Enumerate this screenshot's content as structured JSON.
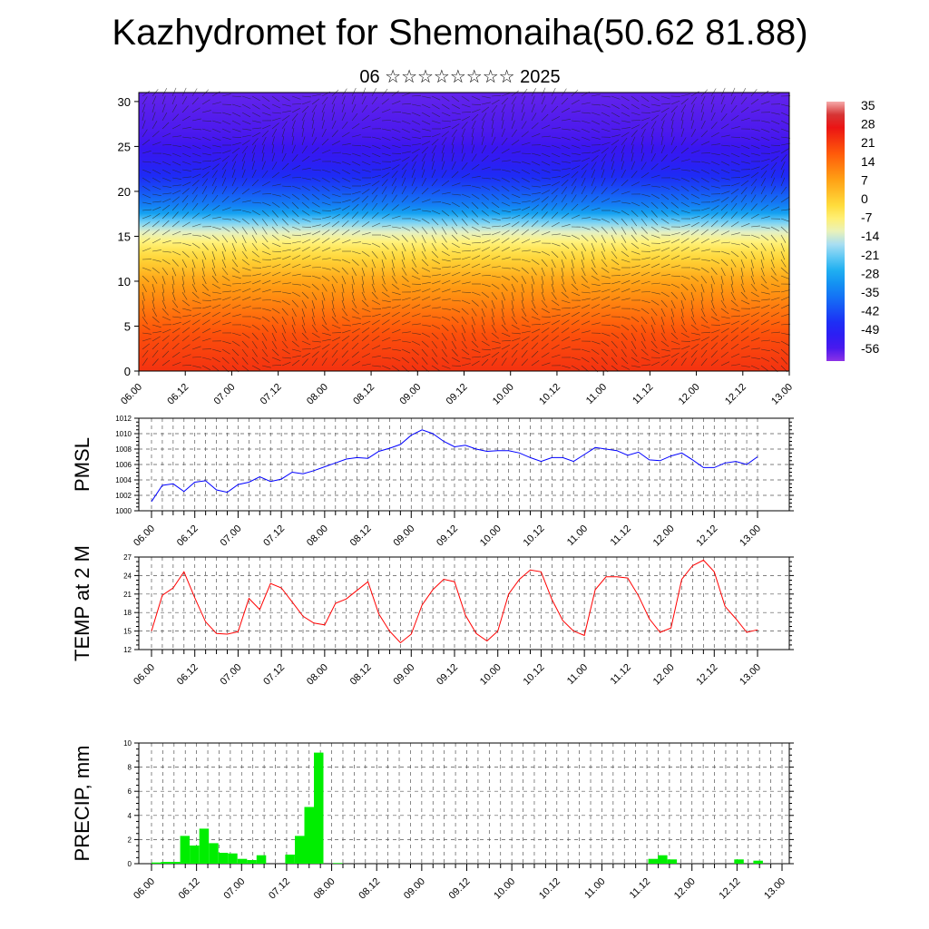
{
  "title": "Kazhydromet for Shemonaiha(50.62 81.88)",
  "subtitle": "06 ☆☆☆☆☆☆☆☆ 2025",
  "chart_data": [
    {
      "type": "heatmap",
      "name": "cross-section",
      "x_ticks": [
        "06.00",
        "06.12",
        "07.00",
        "07.12",
        "08.00",
        "08.12",
        "09.00",
        "09.12",
        "10.00",
        "10.12",
        "11.00",
        "11.12",
        "12.00",
        "12.12",
        "13.00"
      ],
      "y_ticks": [
        0,
        5,
        10,
        15,
        20,
        25,
        30
      ],
      "ylim": [
        0,
        31
      ],
      "colorbar_labels": [
        "35",
        "28",
        "21",
        "14",
        "7",
        "0",
        "-7",
        "-14",
        "-21",
        "-28",
        "-35",
        "-42",
        "-49",
        "-56"
      ],
      "colorbar_range": [
        -60,
        38
      ],
      "temp_profile": [
        [
          0,
          24
        ],
        [
          4,
          20
        ],
        [
          10,
          8
        ],
        [
          14,
          -5
        ],
        [
          16,
          -14
        ],
        [
          18,
          -32
        ],
        [
          21,
          -44
        ],
        [
          24,
          -52
        ],
        [
          26,
          -55
        ],
        [
          31,
          -57
        ]
      ]
    },
    {
      "type": "line",
      "name": "pmsl",
      "ylabel": "PMSL",
      "x_ticks": [
        "06.00",
        "06.12",
        "07.00",
        "07.12",
        "08.00",
        "08.12",
        "09.00",
        "09.12",
        "10.00",
        "10.12",
        "11.00",
        "11.12",
        "12.00",
        "12.12",
        "13.00"
      ],
      "y_ticks": [
        1000,
        1002,
        1004,
        1006,
        1008,
        1010,
        1012
      ],
      "ylim": [
        1000,
        1012
      ],
      "color": "#0000ff",
      "values": [
        1001.2,
        1003.3,
        1003.5,
        1002.5,
        1003.7,
        1003.9,
        1002.7,
        1002.4,
        1003.4,
        1003.7,
        1004.4,
        1003.8,
        1004.1,
        1005.0,
        1004.8,
        1005.2,
        1005.7,
        1006.2,
        1006.7,
        1006.9,
        1006.8,
        1007.7,
        1008.1,
        1008.6,
        1009.8,
        1010.5,
        1010.0,
        1009.0,
        1008.3,
        1008.5,
        1008.0,
        1007.7,
        1007.8,
        1007.8,
        1007.5,
        1006.9,
        1006.4,
        1006.9,
        1006.9,
        1006.4,
        1007.3,
        1008.2,
        1008.0,
        1007.8,
        1007.2,
        1007.6,
        1006.6,
        1006.5,
        1007.1,
        1007.5,
        1006.6,
        1005.6,
        1005.6,
        1006.2,
        1006.4,
        1006.0,
        1007.0
      ]
    },
    {
      "type": "line",
      "name": "temp",
      "ylabel": "TEMP at 2 M",
      "x_ticks": [
        "06.00",
        "06.12",
        "07.00",
        "07.12",
        "08.00",
        "08.12",
        "09.00",
        "09.12",
        "10.00",
        "10.12",
        "11.00",
        "11.12",
        "12.00",
        "12.12",
        "13.00"
      ],
      "y_ticks": [
        12,
        15,
        18,
        21,
        24,
        27
      ],
      "ylim": [
        12,
        27
      ],
      "color": "#ff0000",
      "values": [
        15.0,
        20.8,
        22.0,
        24.6,
        20.4,
        16.5,
        14.6,
        14.5,
        14.9,
        20.3,
        18.5,
        22.7,
        22.0,
        19.7,
        17.4,
        16.3,
        16.0,
        19.5,
        20.2,
        21.6,
        23.0,
        17.8,
        15.0,
        13.1,
        14.5,
        19.2,
        21.7,
        23.4,
        23.0,
        17.6,
        14.6,
        13.4,
        15.0,
        21.0,
        23.4,
        24.9,
        24.6,
        20.1,
        16.7,
        15.0,
        14.3,
        21.7,
        23.8,
        23.8,
        23.6,
        20.7,
        17.0,
        14.8,
        15.5,
        23.4,
        25.6,
        26.5,
        24.6,
        19.0,
        17.0,
        14.8,
        15.2
      ]
    },
    {
      "type": "bar",
      "name": "precip",
      "ylabel": "PRECIP, mm",
      "x_ticks": [
        "06.00",
        "06.12",
        "07.00",
        "07.12",
        "08.00",
        "08.12",
        "09.00",
        "09.12",
        "10.00",
        "10.12",
        "11.00",
        "11.12",
        "12.00",
        "12.12",
        "13.00"
      ],
      "y_ticks": [
        0,
        2,
        4,
        6,
        8,
        10
      ],
      "ylim": [
        0,
        10
      ],
      "color": "#00ee00",
      "values": [
        0.1,
        0.15,
        0.15,
        2.3,
        1.5,
        2.9,
        1.7,
        0.9,
        0.85,
        0.4,
        0.3,
        0.7,
        0,
        0,
        0.75,
        2.3,
        4.7,
        9.2,
        0,
        0.05,
        0,
        0,
        0,
        0,
        0,
        0,
        0,
        0,
        0,
        0,
        0,
        0,
        0,
        0,
        0,
        0,
        0,
        0,
        0,
        0,
        0,
        0,
        0,
        0,
        0,
        0,
        0,
        0,
        0,
        0,
        0,
        0,
        0.4,
        0.7,
        0.35,
        0,
        0,
        0,
        0,
        0,
        0,
        0.35,
        0,
        0.25,
        0,
        0,
        0
      ]
    }
  ]
}
